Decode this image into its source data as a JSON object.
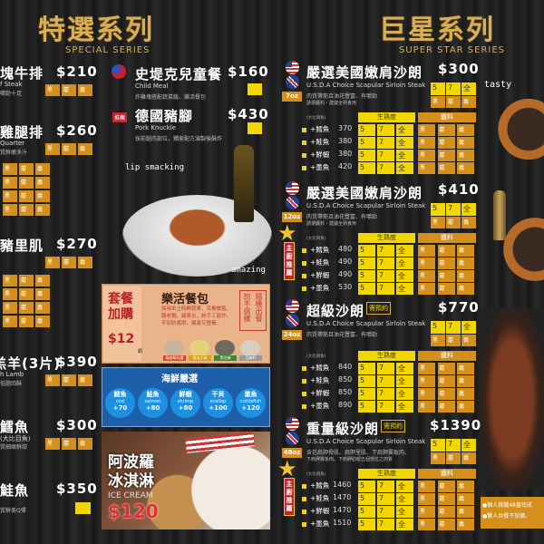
{
  "special": {
    "title": "特選系列",
    "subtitle": "SPECIAL SERIES"
  },
  "superstar": {
    "title": "巨星系列",
    "subtitle": "SUPER STAR SERIES"
  },
  "sauce": [
    "黑",
    "蘑",
    "義"
  ],
  "doneness_labels": [
    "5",
    "7",
    "全"
  ],
  "table_headers": {
    "doneness": "生熟度",
    "sauce": "醬料",
    "addon_note": "(大比目魚)"
  },
  "left_items": [
    {
      "name": "塊牛排",
      "price": "$210",
      "en": "f Steak",
      "desc": "嚼勁十足"
    },
    {
      "name": "雞腿排",
      "price": "$260",
      "en": "Quarter",
      "desc": "質鮮嫩多汁"
    },
    {
      "name": "豬里肌",
      "price": "$270",
      "en": "",
      "desc": ""
    },
    {
      "name": "羔羊(3片)",
      "price": "$390",
      "en": "h Lamb",
      "desc": "低脂回酥"
    },
    {
      "name": "鱈魚",
      "price": "$300",
      "en": "(大比目魚)",
      "desc": "質細緻鮮甜"
    },
    {
      "name": "鮭魚",
      "price": "$350",
      "en": "",
      "desc": "質鮮美Q彈"
    }
  ],
  "child_meal": {
    "name": "史堤克兒童餐",
    "price": "$160",
    "en": "Child Meal",
    "desc": "炸雞塊搭配蔬菜飯、樂活餐包"
  },
  "pork_knuckle": {
    "name": "德國豬腳",
    "price": "$430",
    "en": "Pork Knuckle",
    "desc": "採前腿肉部位，獨家配方滷製後酥炸",
    "badge": "推薦"
  },
  "captions": {
    "lip": "lip smacking",
    "amazing": "amazing",
    "tasty": "tasty"
  },
  "bread": {
    "addon": "套餐加購",
    "price": "$12",
    "unit": "顆",
    "title": "樂活餐包",
    "desc": "採用本土時鮮蔬果、克佛餐菌、酸老麵、礦泉水，純手工製作，不加防腐劑，健康又營養。",
    "note_a": "恕不挑樣",
    "note_b": "隨機出餐",
    "types": [
      "蔓越莓乳酪",
      "南瓜小米",
      "黑芝麻",
      "亞麻籽"
    ]
  },
  "seafood": {
    "title": "海鮮嚴選",
    "items": [
      {
        "zh": "鱈魚",
        "en": "cod",
        "price": "+70"
      },
      {
        "zh": "鮭魚",
        "en": "salmon",
        "price": "+80"
      },
      {
        "zh": "鮮蝦",
        "en": "shrimp",
        "price": "+80"
      },
      {
        "zh": "干貝",
        "en": "scallop",
        "price": "+100"
      },
      {
        "zh": "墨魚",
        "en": "cuttlefish",
        "price": "+120"
      }
    ]
  },
  "icecream": {
    "name": "阿波羅冰淇淋",
    "en": "ICE CREAM",
    "price": "$120"
  },
  "steaks": [
    {
      "name": "嚴選美國嫩肩沙朗",
      "tag": "",
      "price": "$300",
      "oz": "7oz",
      "en": "U.S.D.A Choice Scapular Sirloin Steak",
      "desc": "肉質帶筋且油花豐富、有嚼勁",
      "note": "請選醬料・建議全熟食用",
      "chef": "",
      "addons": [
        {
          "name": "+鱈魚",
          "price": "370"
        },
        {
          "name": "+鮭魚",
          "price": "380"
        },
        {
          "name": "+鮮蝦",
          "price": "380"
        },
        {
          "name": "+墨魚",
          "price": "420"
        }
      ]
    },
    {
      "name": "嚴選美國嫩肩沙朗",
      "tag": "",
      "price": "$410",
      "oz": "12oz",
      "en": "U.S.D.A Choice Scapular Sirloin Steak",
      "desc": "肉質帶筋且油花豐富、有嚼勁",
      "note": "請選醬料・建議全熟食用",
      "chef": "主廚推薦",
      "addons": [
        {
          "name": "+鱈魚",
          "price": "480"
        },
        {
          "name": "+鮭魚",
          "price": "490"
        },
        {
          "name": "+鮮蝦",
          "price": "490"
        },
        {
          "name": "+墨魚",
          "price": "530"
        }
      ]
    },
    {
      "name": "超級沙朗",
      "tag": "需預約",
      "price": "$770",
      "oz": "24oz",
      "en": "U.S.D.A Choice Scapular Sirloin Steak",
      "desc": "肉質帶筋且油花豐富、有嚼勁",
      "note": "",
      "chef": "",
      "addons": [
        {
          "name": "+鱈魚",
          "price": "840"
        },
        {
          "name": "+鮭魚",
          "price": "850"
        },
        {
          "name": "+鮮蝦",
          "price": "850"
        },
        {
          "name": "+墨魚",
          "price": "890"
        }
      ]
    },
    {
      "name": "重量級沙朗",
      "tag": "需預約",
      "price": "$1390",
      "oz": "48oz",
      "en": "U.S.D.A Choice Scapular Sirloin Steak",
      "desc": "含括肩胛骨肌、肩胛里肌、下肩胛翼板肉、",
      "note": "下肩胛翼板肉、下肩胛肋眼五個部位之肉質",
      "chef": "主廚推薦",
      "addons": [
        {
          "name": "+鱈魚",
          "price": "1460"
        },
        {
          "name": "+鮭魚",
          "price": "1470"
        },
        {
          "name": "+鮮蝦",
          "price": "1470"
        },
        {
          "name": "+墨魚",
          "price": "1510"
        }
      ]
    }
  ],
  "notes": [
    "●個人挑戰48盎司成",
    "●雙人共餐不加價、"
  ],
  "colors": {
    "gold": "#d9ae55",
    "sauce": "#d4901a",
    "doneness": "#f2d600",
    "seafood_blue": "#1d5fa8"
  }
}
